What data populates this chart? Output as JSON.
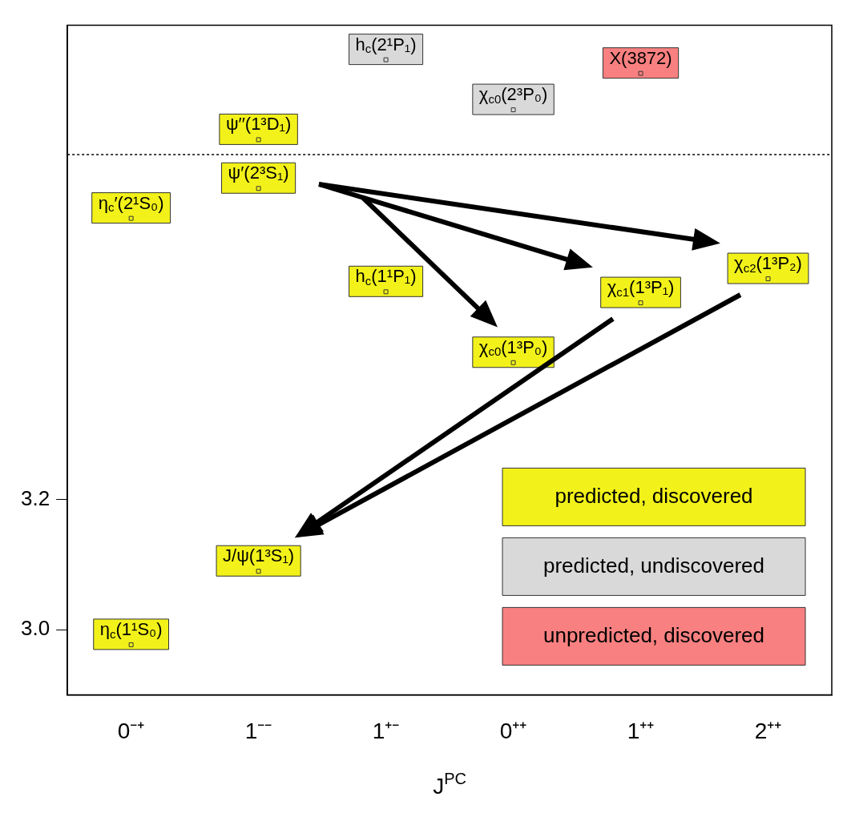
{
  "chart_data": {
    "type": "scatter",
    "xlabel": "J$^{PC}$",
    "categories": [
      "0⁻⁺",
      "1⁻⁻",
      "1⁺⁻",
      "0⁺⁺",
      "1⁺⁺",
      "2⁺⁺"
    ],
    "ylim": [
      2.9,
      3.93
    ],
    "yticks": [
      {
        "value": 3,
        "label": "3.0"
      },
      {
        "value": 3.2,
        "label": "3.2"
      }
    ],
    "grid": false,
    "legend": "bottom right",
    "marker": "square",
    "series": [
      {
        "name": "predicted, discovered",
        "color": "#f2f21a",
        "x": [
          "0⁻⁺",
          "1⁻⁻",
          "0⁻⁺",
          "1⁻⁻",
          "1⁻⁻",
          "1⁺⁻",
          "0⁺⁺",
          "1⁺⁺",
          "2⁺⁺"
        ],
        "values": [
          2.977,
          3.09,
          3.633,
          3.679,
          3.754,
          3.52,
          3.411,
          3.503,
          3.54
        ]
      },
      {
        "name": "predicted, undiscovered",
        "color": "#d9d9d9",
        "x": [
          "1⁺⁻",
          "0⁺⁺"
        ],
        "values": [
          3.877,
          3.8
        ]
      },
      {
        "name": "unpredicted, discovered",
        "color": "#f98080",
        "x": [
          "1⁺⁺"
        ],
        "values": [
          3.856
        ]
      }
    ],
    "annotations": [
      {
        "text": "η$_{c}$(1¹S₀)",
        "x": "0⁻⁺",
        "y": 2.977
      },
      {
        "text": "J/ψ(1³S₁)",
        "x": "1⁻⁻",
        "y": 3.09
      },
      {
        "text": "η$_{c}$′(2¹S₀)",
        "x": "0⁻⁺",
        "y": 3.633
      },
      {
        "text": "ψ′(2³S₁)",
        "x": "1⁻⁻",
        "y": 3.679
      },
      {
        "text": "ψ′′(1³D₁)",
        "x": "1⁻⁻",
        "y": 3.754
      },
      {
        "text": "h$_{c}$(1¹P₁)",
        "x": "1⁺⁻",
        "y": 3.52
      },
      {
        "text": "χ$_{c0}$(1³P₀)",
        "x": "0⁺⁺",
        "y": 3.411
      },
      {
        "text": "χ$_{c1}$(1³P₁)",
        "x": "1⁺⁺",
        "y": 3.503
      },
      {
        "text": "χ$_{c2}$(1³P₂)",
        "x": "2⁺⁺",
        "y": 3.54
      },
      {
        "text": "h$_{c}$(2¹P₁)",
        "x": "1⁺⁻",
        "y": 3.877
      },
      {
        "text": "χ$_{c0}$(2³P₀)",
        "x": "0⁺⁺",
        "y": 3.8
      },
      {
        "text": "X(3872)",
        "x": "1⁺⁺",
        "y": 3.856
      }
    ],
    "ref_lines": [
      {
        "axis": "y",
        "value": 3.731,
        "line_style": "dotted"
      }
    ]
  }
}
